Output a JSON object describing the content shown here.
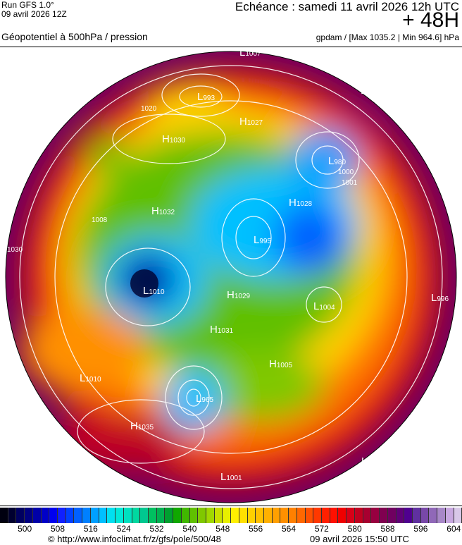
{
  "header": {
    "run": "Run GFS 1.0°",
    "run_date": "09 avril 2026 12Z",
    "echeance": "Echéance : samedi 11 avril 2026 12h UTC",
    "lead": "+ 48H",
    "parameter": "Géopotentiel à 500hPa / pression",
    "units": "gpdam / [Max 1035.2 | Min 964.6] hPa"
  },
  "map": {
    "centers": [
      {
        "type": "L",
        "value": "1007"
      },
      {
        "type": "L",
        "value": "993"
      },
      {
        "type": "H",
        "value": "1027"
      },
      {
        "type": "H",
        "value": "1030"
      },
      {
        "type": "L",
        "value": "98"
      },
      {
        "type": "L",
        "value": "980"
      },
      {
        "type": "H",
        "value": "1028"
      },
      {
        "type": "L",
        "value": "995"
      },
      {
        "type": "H",
        "value": "1032"
      },
      {
        "type": "L",
        "value": "1010"
      },
      {
        "type": "H",
        "value": "1029"
      },
      {
        "type": "L",
        "value": "1004"
      },
      {
        "type": "H",
        "value": "1031"
      },
      {
        "type": "H",
        "value": "1005"
      },
      {
        "type": "L",
        "value": "965"
      },
      {
        "type": "L",
        "value": "1010"
      },
      {
        "type": "H",
        "value": "1035"
      },
      {
        "type": "L",
        "value": "1001"
      },
      {
        "type": "L",
        "value": "996"
      },
      {
        "type": "H",
        "value": ""
      }
    ],
    "isobar_labels": [
      "1010",
      "1020",
      "1030",
      "1008",
      "1001",
      "1000"
    ]
  },
  "colorbar": {
    "colors": [
      "#000010",
      "#000030",
      "#000060",
      "#000080",
      "#0000a8",
      "#0000c8",
      "#0000f0",
      "#1020ff",
      "#0040ff",
      "#0060ff",
      "#0080ff",
      "#00a0ff",
      "#00c0ff",
      "#00e0f0",
      "#00e8d8",
      "#00e0c0",
      "#00d8a0",
      "#00c890",
      "#00c060",
      "#00b050",
      "#00a030",
      "#10a800",
      "#40b800",
      "#60c000",
      "#80c800",
      "#a0d800",
      "#c8e000",
      "#e8f000",
      "#fff000",
      "#ffe000",
      "#ffd000",
      "#ffc000",
      "#ffb000",
      "#ffa000",
      "#ff9000",
      "#ff8000",
      "#ff6800",
      "#ff5000",
      "#ff3800",
      "#ff2000",
      "#ff1000",
      "#f00000",
      "#d80018",
      "#c00020",
      "#a80030",
      "#980040",
      "#800050",
      "#700060",
      "#600078",
      "#500090",
      "#6030a0",
      "#7848a8",
      "#9068b8",
      "#a888c8",
      "#c8a8e0",
      "#d8c8e8"
    ],
    "labels": [
      "500",
      "508",
      "516",
      "524",
      "532",
      "540",
      "548",
      "556",
      "564",
      "572",
      "580",
      "588",
      "596",
      "604"
    ]
  },
  "footer": {
    "credit": "© http://www.infoclimat.fr/z/gfs/pole/500/48",
    "timestamp": "09 avril 2026 15:50 UTC"
  }
}
